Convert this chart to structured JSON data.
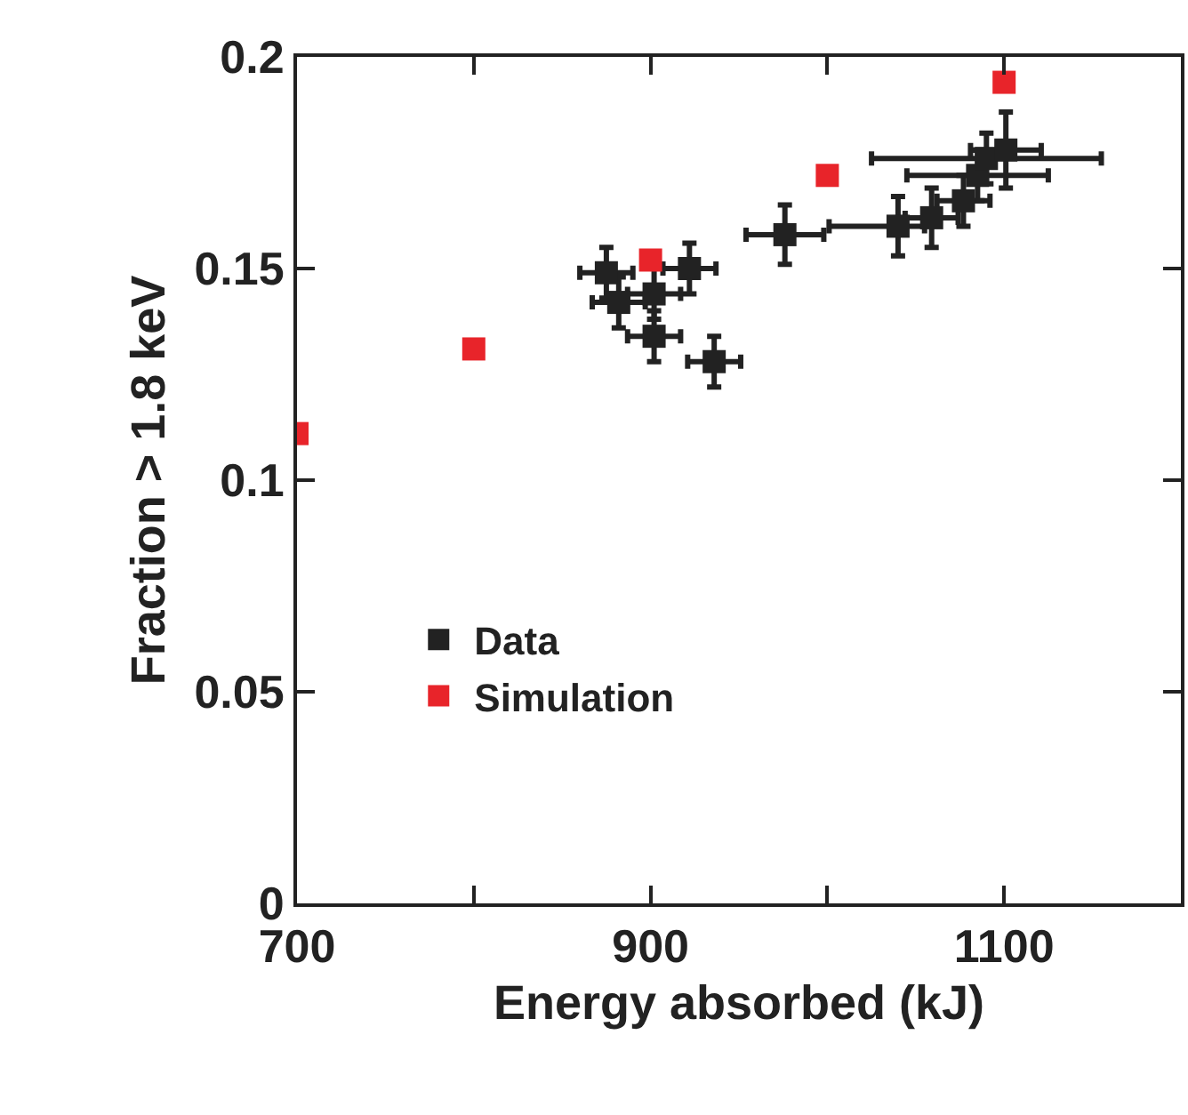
{
  "chart_data": {
    "type": "scatter",
    "xlabel": "Energy absorbed (kJ)",
    "ylabel": "Fraction > 1.8 keV",
    "xlim": [
      700,
      1200
    ],
    "xticks": [
      700,
      {
        "value": 800,
        "label": null
      },
      900,
      {
        "value": 1000,
        "label": null
      },
      1100
    ],
    "ylim": [
      0,
      0.2
    ],
    "yticks": [
      0,
      0.05,
      0.1,
      0.15,
      0.2
    ],
    "grid": false,
    "legend": "bottom left",
    "marker": "square",
    "series": [
      {
        "name": "Data",
        "color": "#222222",
        "x": [
          875,
          905,
          922,
          882,
          902,
          902,
          936,
          976,
          1040,
          1059,
          1077,
          1085,
          1090,
          1101
        ],
        "values": [
          0.149,
          null,
          0.15,
          0.142,
          0.144,
          0.134,
          0.128,
          0.158,
          0.16,
          0.162,
          0.166,
          0.172,
          0.176,
          0.178
        ],
        "errors": [
          0.006,
          null,
          0.006,
          0.006,
          0.006,
          0.006,
          0.006,
          0.007,
          0.007,
          0.007,
          0.006,
          0.006,
          0.006,
          0.009
        ],
        "xerrors": [
          15,
          null,
          15,
          15,
          15,
          15,
          15,
          22,
          [
            1001,
            1055
          ],
          15,
          15,
          [
            1045,
            1125
          ],
          65,
          20
        ]
      },
      {
        "name": "Simulation",
        "color": "#e8242a",
        "x": [
          700,
          800,
          900,
          1000,
          1100
        ],
        "values": [
          0.111,
          0.131,
          0.152,
          0.172,
          0.194
        ]
      }
    ]
  }
}
